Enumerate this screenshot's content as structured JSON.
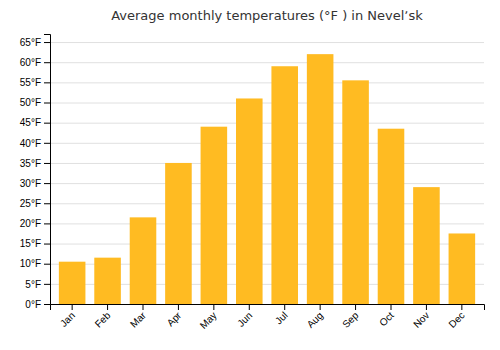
{
  "chart_data": {
    "type": "bar",
    "title": "Average monthly temperatures (°F ) in Nevelʼsk",
    "categories": [
      "Jan",
      "Feb",
      "Mar",
      "Apr",
      "May",
      "Jun",
      "Jul",
      "Aug",
      "Sep",
      "Oct",
      "Nov",
      "Dec"
    ],
    "values": [
      10.5,
      11.5,
      21.5,
      35.0,
      44.0,
      51.0,
      59.0,
      62.0,
      55.5,
      43.5,
      29.0,
      17.5
    ],
    "color": "#FFBB22",
    "ylim": [
      0,
      67
    ],
    "yticks": [
      {
        "value": 0,
        "label": "0°F"
      },
      {
        "value": 5,
        "label": "5°F"
      },
      {
        "value": 10,
        "label": "10°F"
      },
      {
        "value": 15,
        "label": "15°F"
      },
      {
        "value": 20,
        "label": "20°F"
      },
      {
        "value": 25,
        "label": "25°F"
      },
      {
        "value": 30,
        "label": "30°F"
      },
      {
        "value": 35,
        "label": "35°F"
      },
      {
        "value": 40,
        "label": "40°F"
      },
      {
        "value": 45,
        "label": "45°F"
      },
      {
        "value": 50,
        "label": "50°F"
      },
      {
        "value": 55,
        "label": "55°F"
      },
      {
        "value": 60,
        "label": "60°F"
      },
      {
        "value": 65,
        "label": "65°F"
      }
    ],
    "grid": true
  }
}
